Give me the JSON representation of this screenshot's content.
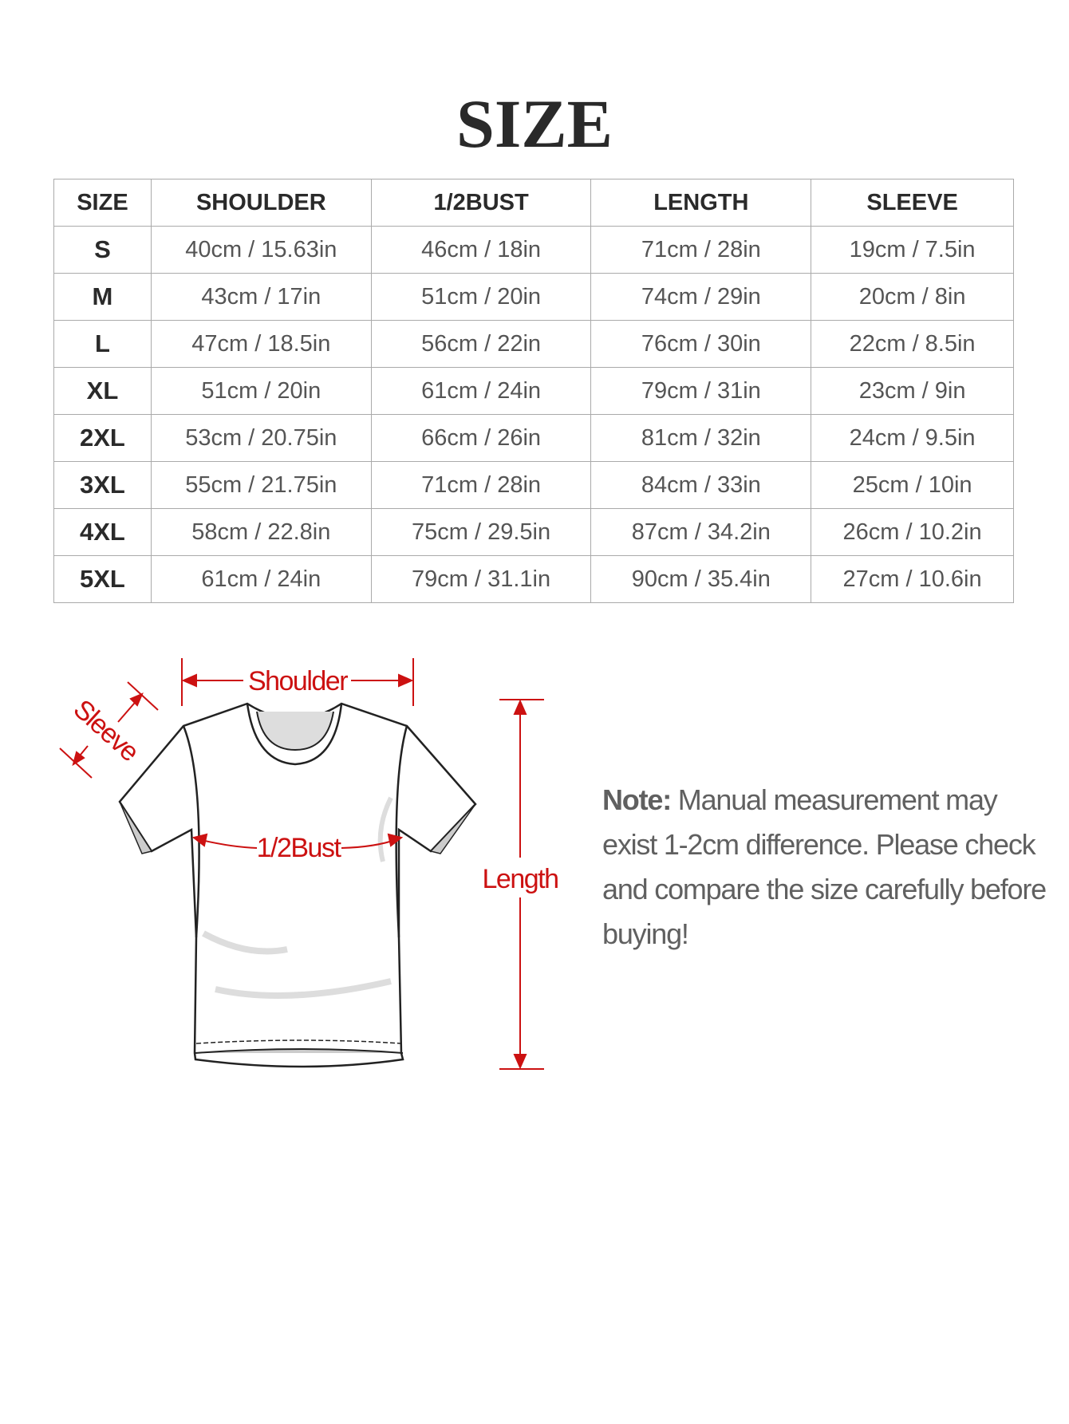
{
  "title": "SIZE",
  "table": {
    "headers": [
      "SIZE",
      "SHOULDER",
      "1/2BUST",
      "LENGTH",
      "SLEEVE"
    ],
    "rows": [
      [
        "S",
        "40cm / 15.63in",
        "46cm / 18in",
        "71cm / 28in",
        "19cm / 7.5in"
      ],
      [
        "M",
        "43cm / 17in",
        "51cm / 20in",
        "74cm / 29in",
        "20cm / 8in"
      ],
      [
        "L",
        "47cm / 18.5in",
        "56cm / 22in",
        "76cm / 30in",
        "22cm / 8.5in"
      ],
      [
        "XL",
        "51cm / 20in",
        "61cm / 24in",
        "79cm / 31in",
        "23cm / 9in"
      ],
      [
        "2XL",
        "53cm / 20.75in",
        "66cm / 26in",
        "81cm / 32in",
        "24cm / 9.5in"
      ],
      [
        "3XL",
        "55cm / 21.75in",
        "71cm / 28in",
        "84cm / 33in",
        "25cm / 10in"
      ],
      [
        "4XL",
        "58cm / 22.8in",
        "75cm / 29.5in",
        "87cm / 34.2in",
        "26cm / 10.2in"
      ],
      [
        "5XL",
        "61cm / 24in",
        "79cm / 31.1in",
        "90cm / 35.4in",
        "27cm / 10.6in"
      ]
    ]
  },
  "diagram": {
    "labels": {
      "shoulder": "Shoulder",
      "sleeve": "Sleeve",
      "bust": "1/2Bust",
      "length": "Length"
    },
    "accent_color": "#cc1111"
  },
  "note": {
    "prefix": "Note:",
    "text": " Manual measurement may exist 1-2cm difference. Please check and compare the size carefully before buying!"
  }
}
